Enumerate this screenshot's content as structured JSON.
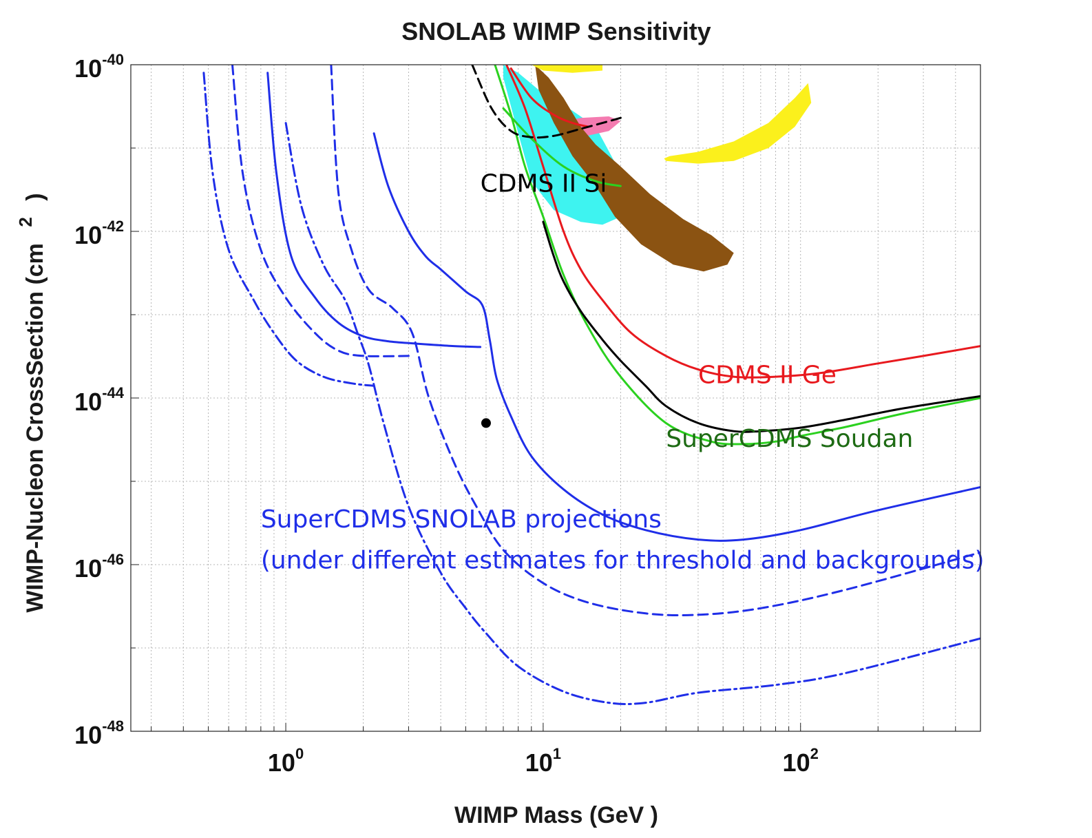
{
  "chart_data": {
    "type": "line",
    "title": "SNOLAB WIMP Sensitivity",
    "xlabel": "WIMP Mass (GeV )",
    "ylabel": "WIMP-Nucleon CrossSection (cm",
    "ylabel_exponent": "2",
    "ylabel_close": ")",
    "xscale": "log",
    "yscale": "log",
    "xlim": [
      0.25,
      500
    ],
    "ylim": [
      1e-48,
      1e-40
    ],
    "grid": true,
    "xticks": [
      {
        "value": 1,
        "base": "10",
        "exp": "0"
      },
      {
        "value": 10,
        "base": "10",
        "exp": "1"
      },
      {
        "value": 100,
        "base": "10",
        "exp": "2"
      }
    ],
    "yticks": [
      {
        "value": 1e-40,
        "base": "10",
        "exp": "-40"
      },
      {
        "value": 1e-42,
        "base": "10",
        "exp": "-42"
      },
      {
        "value": 1e-44,
        "base": "10",
        "exp": "-44"
      },
      {
        "value": 1e-46,
        "base": "10",
        "exp": "-46"
      },
      {
        "value": 1e-48,
        "base": "10",
        "exp": "-48"
      }
    ],
    "annotations": [
      {
        "text": "CDMS II Si",
        "x": 5.7,
        "y": 3e-42,
        "color": "#000000"
      },
      {
        "text": "CDMS II Ge",
        "x": 40,
        "y": 1.5e-44,
        "color": "#e8191e"
      },
      {
        "text": "SuperCDMS Soudan",
        "x": 30,
        "y": 2.6e-45,
        "color": "#1e6b14"
      },
      {
        "text": "SuperCDMS SNOLAB projections",
        "x": 0.8,
        "y": 2.8e-46,
        "color": "#1f2ee8"
      },
      {
        "text": "(under different estimates for threshold and backgrounds)",
        "x": 0.8,
        "y": 9e-47,
        "color": "#1f2ee8"
      }
    ],
    "series": [
      {
        "style": "solid",
        "color": "#e8191e",
        "width": 3,
        "x": [
          7.2,
          8.5,
          10,
          12,
          14,
          17,
          22,
          30,
          40,
          55,
          80,
          120,
          200,
          300,
          500
        ],
        "y": [
          1e-40,
          3e-41,
          6e-42,
          1e-42,
          3.5e-43,
          1.5e-43,
          6e-44,
          3.2e-44,
          2.2e-44,
          1.8e-44,
          1.8e-44,
          2e-44,
          2.6e-44,
          3.2e-44,
          4.2e-44
        ]
      },
      {
        "style": "solid",
        "color": "#e8191e",
        "width": 3,
        "x": [
          7.5,
          9,
          11,
          13,
          15
        ],
        "y": [
          9e-41,
          4e-41,
          2.5e-41,
          2e-41,
          1.8e-41
        ]
      },
      {
        "style": "solid",
        "color": "#2bd11f",
        "width": 3,
        "x": [
          6.5,
          7.5,
          8.5,
          10,
          12,
          15,
          20,
          30,
          45,
          60,
          80,
          100,
          150,
          250,
          500
        ],
        "y": [
          1e-40,
          2.5e-41,
          6e-42,
          1.5e-42,
          3e-43,
          7e-44,
          1.8e-44,
          5e-45,
          3e-45,
          2.8e-45,
          3e-45,
          3.5e-45,
          4.5e-45,
          6.5e-45,
          1e-44
        ]
      },
      {
        "style": "solid",
        "color": "#2bd11f",
        "width": 3,
        "x": [
          7,
          9,
          12,
          16,
          20
        ],
        "y": [
          3e-41,
          1.3e-41,
          6e-42,
          4e-42,
          3.5e-42
        ]
      },
      {
        "style": "solid",
        "color": "#000000",
        "width": 3,
        "x": [
          10,
          11,
          12,
          14,
          17,
          20,
          25,
          30,
          40,
          55,
          70,
          100,
          150,
          250,
          500
        ],
        "y": [
          1.3e-42,
          5e-43,
          2.5e-43,
          1.1e-43,
          5e-44,
          2.8e-44,
          1.4e-44,
          8e-45,
          5e-45,
          4e-45,
          4e-45,
          4.4e-45,
          5.5e-45,
          7.5e-45,
          1.05e-44
        ]
      },
      {
        "style": "dashed",
        "color": "#000000",
        "width": 3,
        "x": [
          5.3,
          6.3,
          7.5,
          9,
          11,
          14,
          17,
          20
        ],
        "y": [
          1e-40,
          3e-41,
          1.6e-41,
          1.35e-41,
          1.4e-41,
          1.7e-41,
          2e-41,
          2.3e-41
        ]
      },
      {
        "style": "solid",
        "color": "#1f2ee8",
        "width": 3,
        "x": [
          2.2,
          2.5,
          3,
          3.5,
          4,
          5,
          5.8,
          6.2,
          6.6,
          7.5,
          9,
          12,
          17,
          25,
          40,
          60,
          100,
          200,
          500
        ],
        "y": [
          1.5e-41,
          3.5e-42,
          1e-42,
          5e-43,
          3.5e-43,
          1.9e-43,
          1.3e-43,
          5e-44,
          1.7e-44,
          6e-45,
          2e-45,
          8e-46,
          4e-46,
          2.6e-46,
          2e-46,
          2e-46,
          2.6e-46,
          4.5e-46,
          8.5e-46
        ]
      },
      {
        "style": "solid",
        "color": "#1f2ee8",
        "width": 3,
        "x": [
          0.85,
          0.92,
          1.05,
          1.3,
          1.6,
          2,
          2.5,
          3.2,
          4.5,
          5.7
        ],
        "y": [
          8e-41,
          5e-42,
          5e-43,
          1.6e-43,
          8e-44,
          5.5e-44,
          4.8e-44,
          4.5e-44,
          4.2e-44,
          4.1e-44
        ]
      },
      {
        "style": "dashed",
        "color": "#1f2ee8",
        "width": 3,
        "x": [
          1.5,
          1.6,
          1.8,
          2.1,
          2.6,
          3.1,
          3.6,
          4.5,
          5.5,
          7,
          10,
          15,
          25,
          40,
          70,
          150,
          500
        ],
        "y": [
          1e-40,
          3e-42,
          6e-43,
          2e-43,
          1.2e-43,
          6e-44,
          1e-44,
          1.7e-45,
          5e-46,
          1.5e-46,
          6e-47,
          3.5e-47,
          2.6e-47,
          2.5e-47,
          3e-47,
          5e-47,
          1.4e-46
        ]
      },
      {
        "style": "dashed",
        "color": "#1f2ee8",
        "width": 3,
        "x": [
          0.62,
          0.68,
          0.8,
          1,
          1.3,
          1.6,
          2,
          3
        ],
        "y": [
          1e-40,
          5e-42,
          6e-43,
          1.6e-43,
          6e-44,
          3.7e-44,
          3.2e-44,
          3.2e-44
        ]
      },
      {
        "style": "dashdot",
        "color": "#1f2ee8",
        "width": 3,
        "x": [
          1,
          1.15,
          1.4,
          1.7,
          1.9,
          2.1,
          2.4,
          3,
          4,
          5,
          6,
          8,
          12,
          18,
          25,
          40,
          80,
          150,
          500
        ],
        "y": [
          2e-41,
          2e-42,
          4e-43,
          1.5e-43,
          6e-44,
          2.5e-44,
          5e-45,
          5e-46,
          8e-47,
          3e-47,
          1.5e-47,
          6e-48,
          3e-48,
          2.2e-48,
          2.2e-48,
          2.9e-48,
          3.6e-48,
          5e-48,
          1.3e-47
        ]
      },
      {
        "style": "dashdot",
        "color": "#1f2ee8",
        "width": 3,
        "x": [
          0.48,
          0.52,
          0.6,
          0.75,
          0.9,
          1.1,
          1.4,
          1.8,
          2.2
        ],
        "y": [
          8e-41,
          5e-42,
          6e-43,
          1.5e-43,
          6e-44,
          2.8e-44,
          1.8e-44,
          1.5e-44,
          1.4e-44
        ]
      }
    ],
    "points": [
      {
        "x": 6,
        "y": 5e-45,
        "color": "#000000"
      }
    ],
    "regions": [
      {
        "color": "#3ef3f0",
        "x": [
          7,
          8,
          10,
          13,
          16,
          20,
          20,
          17,
          14,
          11,
          9,
          7.8,
          7
        ],
        "y": [
          1e-40,
          8e-41,
          4.5e-41,
          2.8e-41,
          1.8e-41,
          5e-42,
          1.5e-42,
          1.2e-42,
          1.3e-42,
          1.8e-42,
          4e-42,
          2e-41,
          7e-41
        ]
      },
      {
        "color": "#f47bb0",
        "x": [
          11,
          14,
          18,
          20,
          18,
          14,
          11.5
        ],
        "y": [
          2e-41,
          2.3e-41,
          2.4e-41,
          2.1e-41,
          1.6e-41,
          1.35e-41,
          1.6e-41
        ]
      },
      {
        "color": "#8b5312",
        "x": [
          9.3,
          10.5,
          12,
          14,
          16,
          20,
          26,
          35,
          45,
          55,
          52,
          42,
          32,
          24,
          19,
          16,
          13,
          11,
          9.6
        ],
        "y": [
          1e-40,
          7e-41,
          4e-41,
          1.8e-41,
          1.1e-41,
          6e-42,
          2.8e-42,
          1.4e-42,
          9e-43,
          5.5e-43,
          4e-43,
          3.3e-43,
          4e-43,
          7e-43,
          1.5e-42,
          3.5e-42,
          8e-42,
          2e-41,
          5e-41
        ]
      },
      {
        "color": "#fbf01c",
        "x": [
          9,
          11,
          14,
          17,
          17,
          13,
          10
        ],
        "y": [
          1e-40,
          1e-40,
          1e-40,
          1e-40,
          8.5e-41,
          8e-41,
          8.5e-41
        ]
      },
      {
        "color": "#fbf01c",
        "x": [
          30,
          40,
          55,
          75,
          95,
          110,
          107,
          95,
          75,
          55,
          40,
          31,
          29.5
        ],
        "y": [
          7e-42,
          6.5e-42,
          7e-42,
          1e-41,
          1.8e-41,
          3.5e-41,
          6e-41,
          4e-41,
          2e-41,
          1.2e-41,
          9e-42,
          8e-42,
          7.5e-42
        ]
      }
    ]
  }
}
